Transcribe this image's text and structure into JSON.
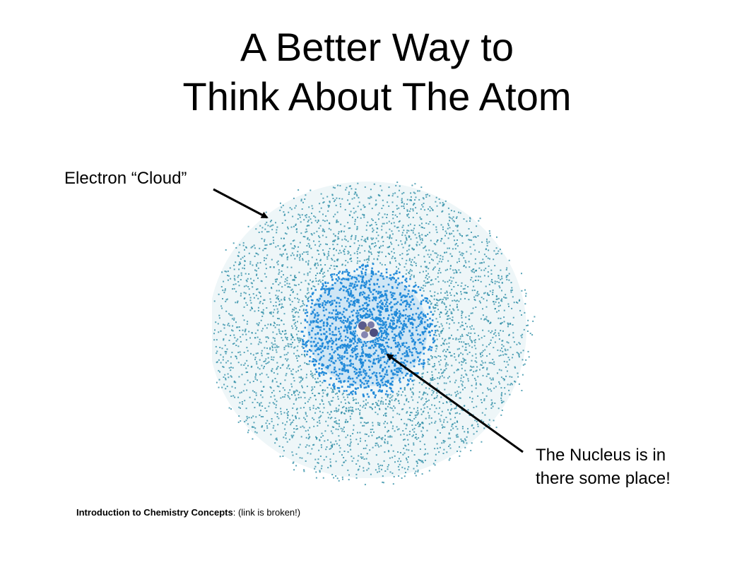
{
  "slide": {
    "title_line1": "A Better Way to",
    "title_line2": "Think About The Atom",
    "cloud_label": "Electron “Cloud”",
    "nucleus_label_line1": "The Nucleus is in",
    "nucleus_label_line2": "there some place!",
    "footer_link_text": "Introduction to Chemistry Concepts",
    "footer_note": ": (link is broken!)"
  },
  "colors": {
    "background": "#ffffff",
    "text": "#000000",
    "cloud_outer": "#2f8fa6",
    "cloud_inner": "#1e88d8",
    "nucleus": "#5a5a8a"
  }
}
